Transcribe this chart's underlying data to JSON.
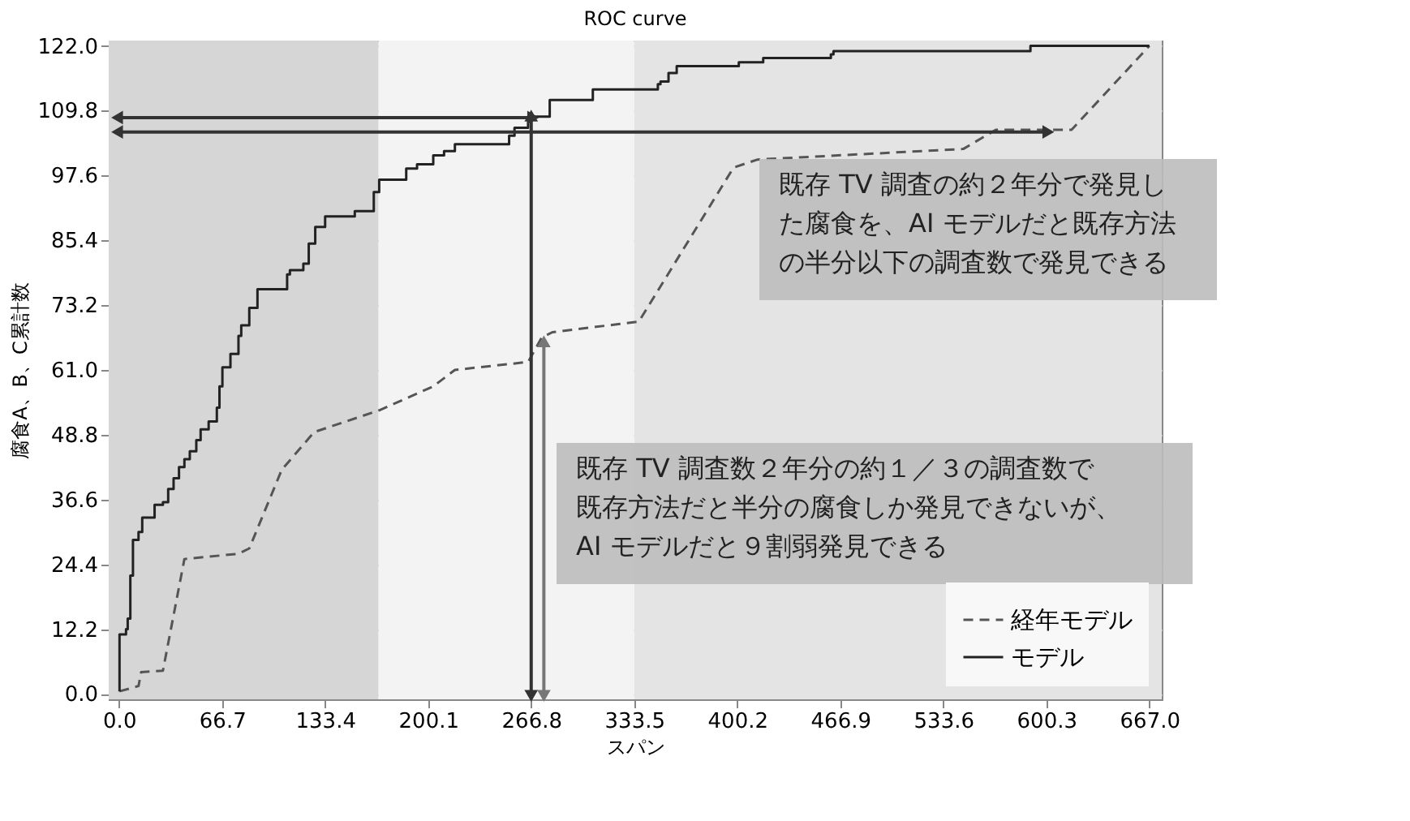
{
  "chart_data": {
    "type": "line",
    "title": "ROC curve",
    "xlabel": "スパン",
    "ylabel": "腐食A、B、C累計数",
    "xlim": [
      -6.7,
      675
    ],
    "ylim": [
      -1,
      123
    ],
    "xticks": [
      {
        "value": 0,
        "label": "0.0"
      },
      66.7,
      133.4,
      200.1,
      266.8,
      333.5,
      400.2,
      466.9,
      533.6,
      600.3,
      {
        "value": 667,
        "label": "667.0"
      }
    ],
    "yticks": [
      {
        "value": 0,
        "label": "0.0"
      },
      12.2,
      24.4,
      36.6,
      48.8,
      {
        "value": 61,
        "label": "61.0"
      },
      73.2,
      85.4,
      97.6,
      109.8,
      {
        "value": 122,
        "label": "122.0"
      }
    ],
    "grid": true,
    "legend": "bottom right",
    "bands": [
      {
        "axis": "x",
        "from": -6.7,
        "to": 168,
        "color": "#d6d6d6"
      },
      {
        "axis": "x",
        "from": 168,
        "to": 333.5,
        "color": "#f3f3f3"
      },
      {
        "axis": "x",
        "from": 333.5,
        "to": 675,
        "color": "#e4e4e4"
      }
    ],
    "series": [
      {
        "name": "経年モデル",
        "color": "#555555",
        "line_style": "dashed",
        "x": [
          0.3,
          12.6,
          14.3,
          28.4,
          42.3,
          77.3,
          84.3,
          105.3,
          126.3,
          168.4,
          203.4,
          217.4,
          264.8,
          273.6,
          280.5,
          336.5,
          397.8,
          413.4,
          546.5,
          567.6,
          616.6,
          667
        ],
        "values": [
          0.5,
          1.5,
          4.1,
          4.4,
          25.4,
          26.4,
          27.4,
          42.2,
          49.3,
          53.4,
          57.9,
          61,
          62.5,
          67.1,
          68.1,
          70.1,
          99.1,
          100.6,
          102.6,
          106.2,
          106.2,
          122
        ]
      },
      {
        "name": "モデル",
        "type": "step",
        "color": "#222222",
        "line_style": "solid",
        "x": [
          0.3,
          0.3,
          4.5,
          5.6,
          7.3,
          7.3,
          9,
          12.6,
          15,
          21.3,
          23,
          28.4,
          31.8,
          35.3,
          38.8,
          42.3,
          45.8,
          50,
          52.8,
          58,
          63.3,
          65,
          66.9,
          72.1,
          77.3,
          79.1,
          84.3,
          89.6,
          92,
          108.8,
          110.6,
          119.3,
          122.8,
          127,
          133.4,
          140.3,
          152.6,
          154.4,
          164.9,
          168.4,
          175.4,
          185.9,
          192.9,
          203.4,
          210.4,
          217.4,
          222.7,
          252.5,
          256,
          264.8,
          270,
          278.8,
          280.5,
          306.7,
          306.7,
          348.8,
          350.5,
          355.7,
          361,
          364.4,
          401.2,
          417,
          460.8,
          462.5,
          588.3,
          590,
          667
        ],
        "values": [
          0.5,
          11.2,
          12.2,
          14.2,
          17.8,
          22.3,
          29,
          30.5,
          33.2,
          33.2,
          35.6,
          36.1,
          38.6,
          40.6,
          42.7,
          44.2,
          45.7,
          47.8,
          49.8,
          51.3,
          53.9,
          57.9,
          61.5,
          64,
          67.4,
          69.4,
          72.7,
          76.2,
          76.2,
          79,
          79.8,
          81,
          84.8,
          87.9,
          89.9,
          89.9,
          90.9,
          90.9,
          94.5,
          96.8,
          96.8,
          98.9,
          99.7,
          101.4,
          102.2,
          103.5,
          103.5,
          105.1,
          106.6,
          108.7,
          108.7,
          111.8,
          111.8,
          113.8,
          113.8,
          114.8,
          115.3,
          116.9,
          118.2,
          118.2,
          118.9,
          119.7,
          120.4,
          121,
          121,
          122,
          122
        ]
      },
      {
        "type": "line",
        "color": "#333333",
        "line_style": "solid",
        "marker": "triangle",
        "x": [
          0,
          266.8
        ],
        "values": [
          108.5,
          108.5
        ]
      },
      {
        "type": "line",
        "color": "#333333",
        "line_style": "solid",
        "marker": "triangle",
        "x": [
          0,
          600.3
        ],
        "values": [
          105.8,
          105.8
        ]
      },
      {
        "type": "line",
        "color": "#333333",
        "line_style": "solid",
        "marker": "triangle",
        "x": [
          266.8,
          266.8
        ],
        "values": [
          0,
          108.5
        ]
      },
      {
        "type": "line",
        "color": "#777777",
        "line_style": "solid",
        "marker": "triangle",
        "x": [
          275,
          275
        ],
        "values": [
          0,
          66
        ]
      }
    ],
    "annotations": [
      "既存 TV 調査の約２年分で発見した腐食を、AI モデルだと既存方法の半分以下の調査数で発見できる",
      "既存 TV 調査数２年分の約１／３の調査数で既存方法だと半分の腐食しか発見できないが、AI モデルだと９割弱発見できる"
    ]
  }
}
